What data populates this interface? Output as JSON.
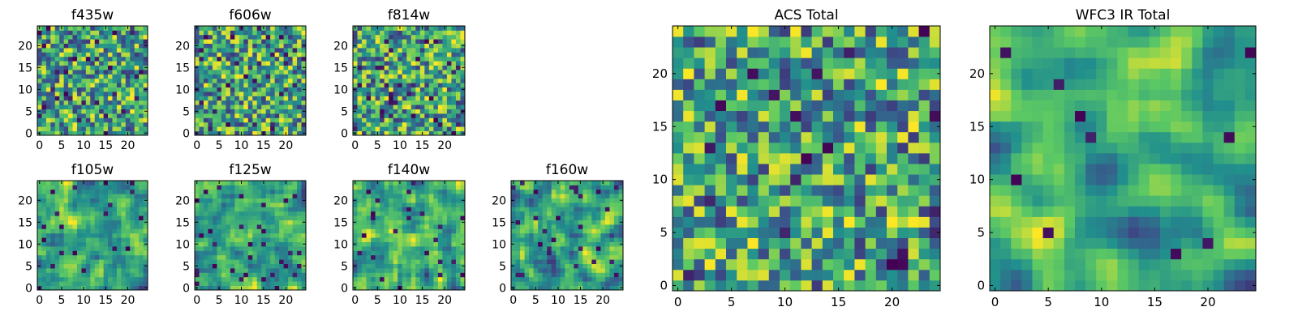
{
  "colormap": [
    "#440154",
    "#3b528b",
    "#21908d",
    "#5dc963",
    "#fde725"
  ],
  "chart_data": [
    {
      "type": "heatmap",
      "title": "f435w",
      "grid_size": 25,
      "xlim": [
        0,
        24
      ],
      "ylim": [
        0,
        24
      ],
      "xticks": [
        0,
        5,
        10,
        15,
        20
      ],
      "yticks": [
        0,
        5,
        10,
        15,
        20
      ],
      "seed": 11,
      "smooth": 0,
      "dark_fraction": 0.05
    },
    {
      "type": "heatmap",
      "title": "f606w",
      "grid_size": 25,
      "xlim": [
        0,
        24
      ],
      "ylim": [
        0,
        24
      ],
      "xticks": [
        0,
        5,
        10,
        15,
        20
      ],
      "yticks": [
        0,
        5,
        10,
        15,
        20
      ],
      "seed": 23,
      "smooth": 0,
      "dark_fraction": 0.05
    },
    {
      "type": "heatmap",
      "title": "f814w",
      "grid_size": 25,
      "xlim": [
        0,
        24
      ],
      "ylim": [
        0,
        24
      ],
      "xticks": [
        0,
        5,
        10,
        15,
        20
      ],
      "yticks": [
        0,
        5,
        10,
        15,
        20
      ],
      "seed": 37,
      "smooth": 0,
      "dark_fraction": 0.05
    },
    {
      "type": "heatmap",
      "title": "f105w",
      "grid_size": 25,
      "xlim": [
        0,
        24
      ],
      "ylim": [
        0,
        24
      ],
      "xticks": [
        0,
        5,
        10,
        15,
        20
      ],
      "yticks": [
        0,
        5,
        10,
        15,
        20
      ],
      "seed": 41,
      "smooth": 1,
      "dark_fraction": 0.04
    },
    {
      "type": "heatmap",
      "title": "f125w",
      "grid_size": 25,
      "xlim": [
        0,
        24
      ],
      "ylim": [
        0,
        24
      ],
      "xticks": [
        0,
        5,
        10,
        15,
        20
      ],
      "yticks": [
        0,
        5,
        10,
        15,
        20
      ],
      "seed": 53,
      "smooth": 1,
      "dark_fraction": 0.04
    },
    {
      "type": "heatmap",
      "title": "f140w",
      "grid_size": 25,
      "xlim": [
        0,
        24
      ],
      "ylim": [
        0,
        24
      ],
      "xticks": [
        0,
        5,
        10,
        15,
        20
      ],
      "yticks": [
        0,
        5,
        10,
        15,
        20
      ],
      "seed": 67,
      "smooth": 1,
      "dark_fraction": 0.03
    },
    {
      "type": "heatmap",
      "title": "f160w",
      "grid_size": 25,
      "xlim": [
        0,
        24
      ],
      "ylim": [
        0,
        24
      ],
      "xticks": [
        0,
        5,
        10,
        15,
        20
      ],
      "yticks": [
        0,
        5,
        10,
        15,
        20
      ],
      "seed": 79,
      "smooth": 1,
      "dark_fraction": 0.04
    },
    {
      "type": "heatmap",
      "title": "ACS Total",
      "grid_size": 25,
      "xlim": [
        0,
        24
      ],
      "ylim": [
        0,
        24
      ],
      "xticks": [
        0,
        5,
        10,
        15,
        20
      ],
      "yticks": [
        0,
        5,
        10,
        15,
        20
      ],
      "seed": 97,
      "smooth": 0,
      "dark_fraction": 0.03
    },
    {
      "type": "heatmap",
      "title": "WFC3 IR Total",
      "grid_size": 25,
      "xlim": [
        0,
        24
      ],
      "ylim": [
        0,
        24
      ],
      "xticks": [
        0,
        5,
        10,
        15,
        20
      ],
      "yticks": [
        0,
        5,
        10,
        15,
        20
      ],
      "seed": 131,
      "smooth": 2,
      "dark_fraction": 0.02
    }
  ]
}
